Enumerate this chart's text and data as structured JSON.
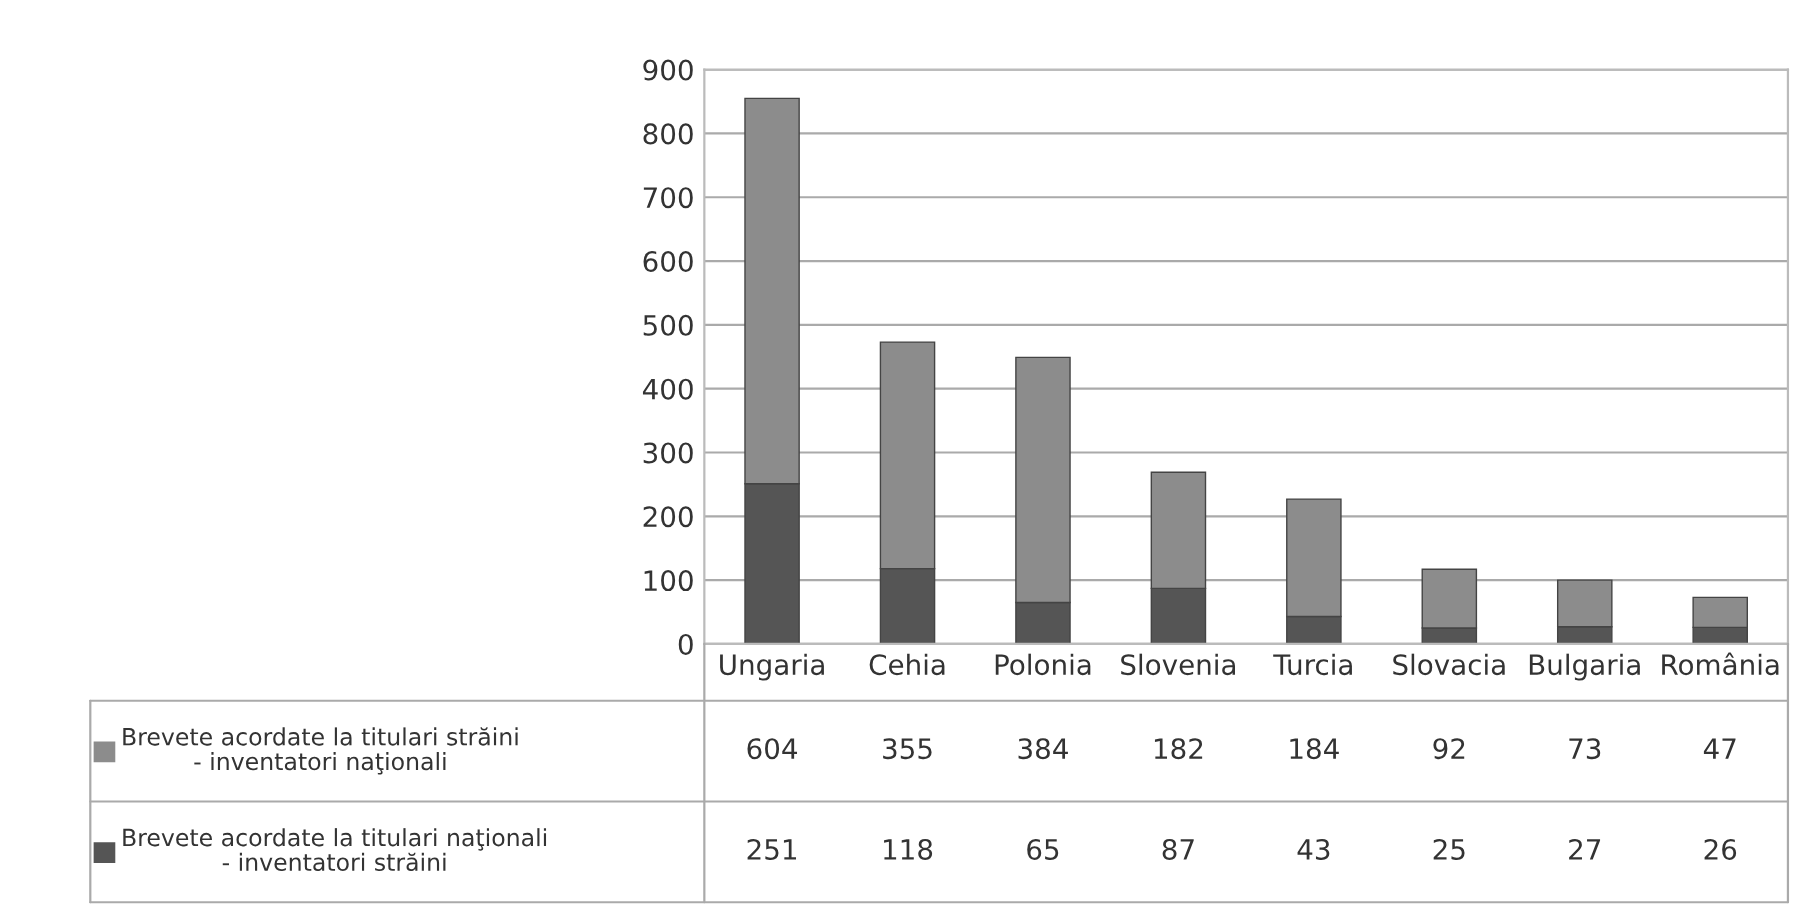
{
  "chart_data": {
    "type": "bar",
    "stacked": true,
    "categories": [
      "Ungaria",
      "Cehia",
      "Polonia",
      "Slovenia",
      "Turcia",
      "Slovacia",
      "Bulgaria",
      "România"
    ],
    "series": [
      {
        "name": "Brevete acordate la titulari naţionali - inventatori străini",
        "color": "#555555",
        "values": [
          251,
          118,
          65,
          87,
          43,
          25,
          27,
          26
        ]
      },
      {
        "name": "Brevete acordate la titulari străini - inventatori naţionali",
        "color": "#8c8c8c",
        "values": [
          604,
          355,
          384,
          182,
          184,
          92,
          73,
          47
        ]
      }
    ],
    "ylim": [
      0,
      900
    ],
    "yticks": [
      0,
      100,
      200,
      300,
      400,
      500,
      600,
      700,
      800,
      900
    ],
    "grid": "y",
    "data_labels": true,
    "legend": "bottom"
  }
}
